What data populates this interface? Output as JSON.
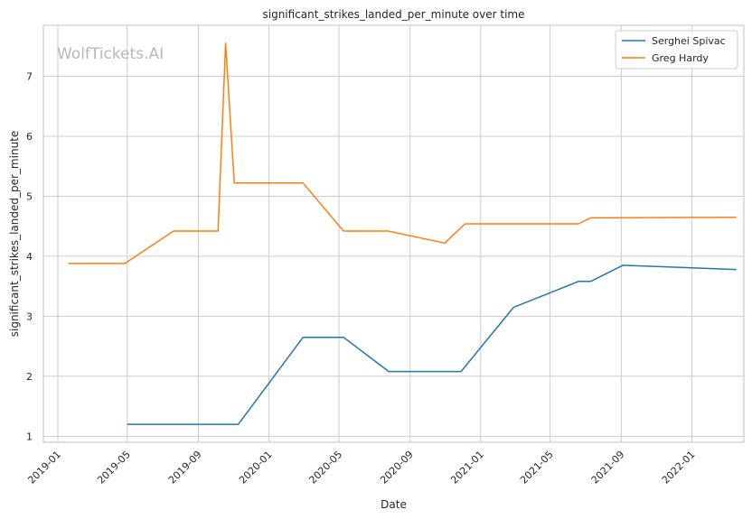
{
  "chart_data": {
    "type": "line",
    "title": "significant_strikes_landed_per_minute over time",
    "xlabel": "Date",
    "ylabel": "significant_strikes_landed_per_minute",
    "watermark": "WolfTickets.AI",
    "x_ticks": [
      "2019-01",
      "2019-05",
      "2019-09",
      "2020-01",
      "2020-05",
      "2020-09",
      "2021-01",
      "2021-05",
      "2021-09",
      "2022-01"
    ],
    "y_ticks": [
      1,
      2,
      3,
      4,
      5,
      6,
      7
    ],
    "xlim": [
      "2018-12-07",
      "2022-04-01"
    ],
    "ylim": [
      0.9,
      7.85
    ],
    "grid": true,
    "legend_position": "top-right",
    "series": [
      {
        "name": "Serghei Spivac",
        "color": "#1f77b4",
        "points": [
          [
            "2019-05-01",
            1.2
          ],
          [
            "2019-11-09",
            1.2
          ],
          [
            "2020-02-29",
            2.65
          ],
          [
            "2020-05-09",
            2.65
          ],
          [
            "2020-07-26",
            2.08
          ],
          [
            "2020-11-28",
            2.08
          ],
          [
            "2021-02-27",
            3.15
          ],
          [
            "2021-06-19",
            3.58
          ],
          [
            "2021-07-10",
            3.58
          ],
          [
            "2021-09-04",
            3.85
          ],
          [
            "2022-03-19",
            3.78
          ]
        ]
      },
      {
        "name": "Greg Hardy",
        "color": "#ff7f0e",
        "points": [
          [
            "2019-01-19",
            3.88
          ],
          [
            "2019-04-27",
            3.88
          ],
          [
            "2019-07-20",
            4.42
          ],
          [
            "2019-10-05",
            4.42
          ],
          [
            "2019-10-18",
            7.55
          ],
          [
            "2019-11-02",
            5.22
          ],
          [
            "2020-02-29",
            5.22
          ],
          [
            "2020-05-09",
            4.42
          ],
          [
            "2020-07-25",
            4.42
          ],
          [
            "2020-10-31",
            4.22
          ],
          [
            "2020-12-05",
            4.54
          ],
          [
            "2021-06-19",
            4.54
          ],
          [
            "2021-07-10",
            4.64
          ],
          [
            "2022-03-19",
            4.65
          ]
        ]
      }
    ]
  }
}
